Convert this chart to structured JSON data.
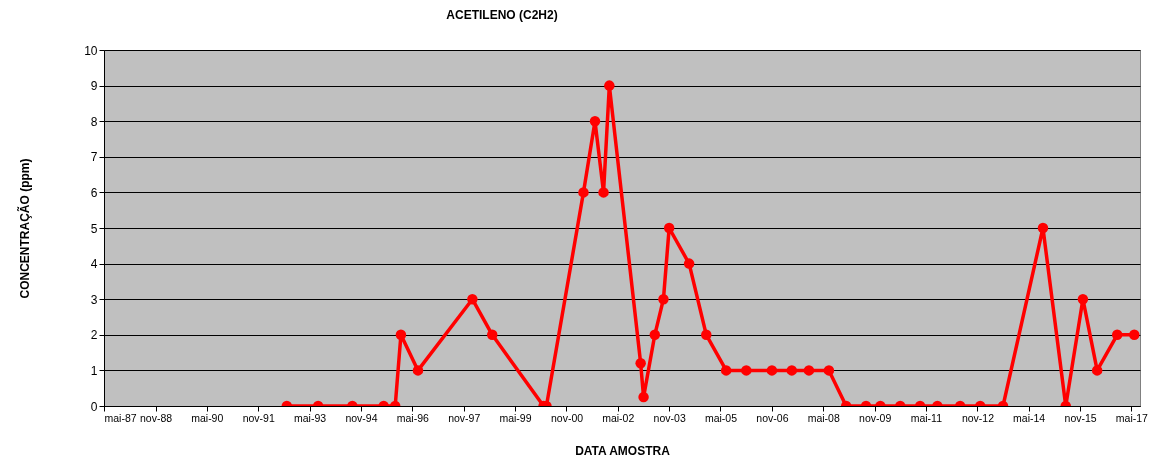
{
  "chart_data": {
    "type": "line",
    "title": "ACETILENO (C2H2)",
    "xlabel": "DATA AMOSTRA",
    "ylabel": "CONCENTRAÇÃO (ppm)",
    "x": [
      "1992-09",
      "1993-08",
      "1994-08",
      "1995-07",
      "1995-11",
      "1996-01",
      "1996-07",
      "1998-02",
      "1998-09",
      "2000-03",
      "2000-04",
      "2001-05",
      "2001-09",
      "2001-12",
      "2002-02",
      "2003-01",
      "2003-02",
      "2003-06",
      "2003-09",
      "2003-11",
      "2004-06",
      "2004-12",
      "2005-07",
      "2006-02",
      "2006-11",
      "2007-06",
      "2007-12",
      "2008-07",
      "2009-01",
      "2009-08",
      "2010-01",
      "2010-08",
      "2011-03",
      "2011-09",
      "2012-05",
      "2012-12",
      "2013-08",
      "2014-10",
      "2015-06",
      "2015-12",
      "2016-05",
      "2016-12",
      "2017-06"
    ],
    "series": [
      {
        "color": "#ff0000",
        "values": [
          0,
          0,
          0,
          0,
          0,
          2,
          1,
          3,
          2,
          0,
          0,
          6,
          8,
          6,
          9,
          1.2,
          0.25,
          2,
          3,
          5,
          4,
          2,
          1,
          1,
          1,
          1,
          1,
          1,
          0,
          0,
          0,
          0,
          0,
          0,
          0,
          0,
          0,
          5,
          0,
          3,
          1,
          2,
          2
        ]
      }
    ],
    "xlim": [
      "1987-05",
      "2017-08"
    ],
    "xticks": [
      {
        "value": "1987-05",
        "label": "mai-87"
      },
      {
        "value": "1988-11",
        "label": "nov-88"
      },
      {
        "value": "1990-05",
        "label": "mai-90"
      },
      {
        "value": "1991-11",
        "label": "nov-91"
      },
      {
        "value": "1993-05",
        "label": "mai-93"
      },
      {
        "value": "1994-11",
        "label": "nov-94"
      },
      {
        "value": "1996-05",
        "label": "mai-96"
      },
      {
        "value": "1997-11",
        "label": "nov-97"
      },
      {
        "value": "1999-05",
        "label": "mai-99"
      },
      {
        "value": "2000-11",
        "label": "nov-00"
      },
      {
        "value": "2002-05",
        "label": "mai-02"
      },
      {
        "value": "2003-11",
        "label": "nov-03"
      },
      {
        "value": "2005-05",
        "label": "mai-05"
      },
      {
        "value": "2006-11",
        "label": "nov-06"
      },
      {
        "value": "2008-05",
        "label": "mai-08"
      },
      {
        "value": "2009-11",
        "label": "nov-09"
      },
      {
        "value": "2011-05",
        "label": "mai-11"
      },
      {
        "value": "2012-11",
        "label": "nov-12"
      },
      {
        "value": "2014-05",
        "label": "mai-14"
      },
      {
        "value": "2015-11",
        "label": "nov-15"
      },
      {
        "value": "2017-05",
        "label": "mai-17"
      }
    ],
    "ylim": [
      0,
      10
    ],
    "yticks": [
      0,
      1,
      2,
      3,
      4,
      5,
      6,
      7,
      8,
      9,
      10
    ],
    "grid": "y",
    "marker": "circle",
    "line_style": "solid"
  }
}
